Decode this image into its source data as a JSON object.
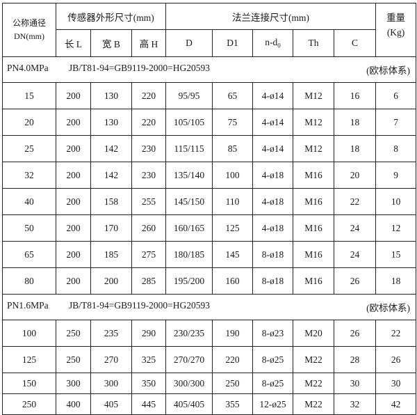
{
  "header": {
    "dn_label_line1": "公称通径",
    "dn_label_line2": "DN(mm)",
    "sensor_group": "传感器外形尺寸(mm)",
    "flange_group": "法兰连接尺寸(mm)",
    "weight_line1": "重量",
    "weight_line2": "(Kg)",
    "columns": [
      "长 L",
      "宽 B",
      "高 H",
      "D",
      "D1",
      "n-d",
      "Th",
      "C"
    ],
    "nd_subscript": "0"
  },
  "sections": [
    {
      "pressure": "PN4.0MPa",
      "standard": "JB/T81-94=GB9119-2000=HG20593",
      "system": "(欧标体系)",
      "rows": [
        [
          "15",
          "200",
          "130",
          "220",
          "95/95",
          "65",
          "4-ø14",
          "M12",
          "16",
          "6"
        ],
        [
          "20",
          "200",
          "130",
          "220",
          "105/105",
          "75",
          "4-ø14",
          "M12",
          "18",
          "7"
        ],
        [
          "25",
          "200",
          "142",
          "230",
          "115/115",
          "85",
          "4-ø14",
          "M12",
          "18",
          "8"
        ],
        [
          "32",
          "200",
          "142",
          "230",
          "135/140",
          "100",
          "4-ø18",
          "M16",
          "20",
          "9"
        ],
        [
          "40",
          "200",
          "158",
          "255",
          "145/150",
          "110",
          "4-ø18",
          "M16",
          "22",
          "10"
        ],
        [
          "50",
          "200",
          "170",
          "260",
          "160/165",
          "125",
          "4-ø18",
          "M16",
          "24",
          "12"
        ],
        [
          "65",
          "200",
          "185",
          "275",
          "180/185",
          "145",
          "8-ø18",
          "M16",
          "24",
          "15"
        ],
        [
          "80",
          "200",
          "200",
          "285",
          "195/200",
          "160",
          "8-ø18",
          "M16",
          "26",
          "18"
        ]
      ]
    },
    {
      "pressure": "PN1.6MPa",
      "standard": "JB/T81-94=GB9119-2000=HG20593",
      "system": "(欧标体系)",
      "rows": [
        [
          "100",
          "250",
          "235",
          "290",
          "230/235",
          "190",
          "8-ø23",
          "M20",
          "26",
          "22"
        ],
        [
          "125",
          "250",
          "270",
          "325",
          "270/270",
          "220",
          "8-ø25",
          "M22",
          "28",
          "26"
        ],
        [
          "150",
          "300",
          "300",
          "350",
          "300/300",
          "250",
          "8-ø25",
          "M22",
          "30",
          "30"
        ],
        [
          "250",
          "400",
          "405",
          "445",
          "405/405",
          "355",
          "12-ø25",
          "M22",
          "32",
          "42"
        ]
      ]
    }
  ]
}
